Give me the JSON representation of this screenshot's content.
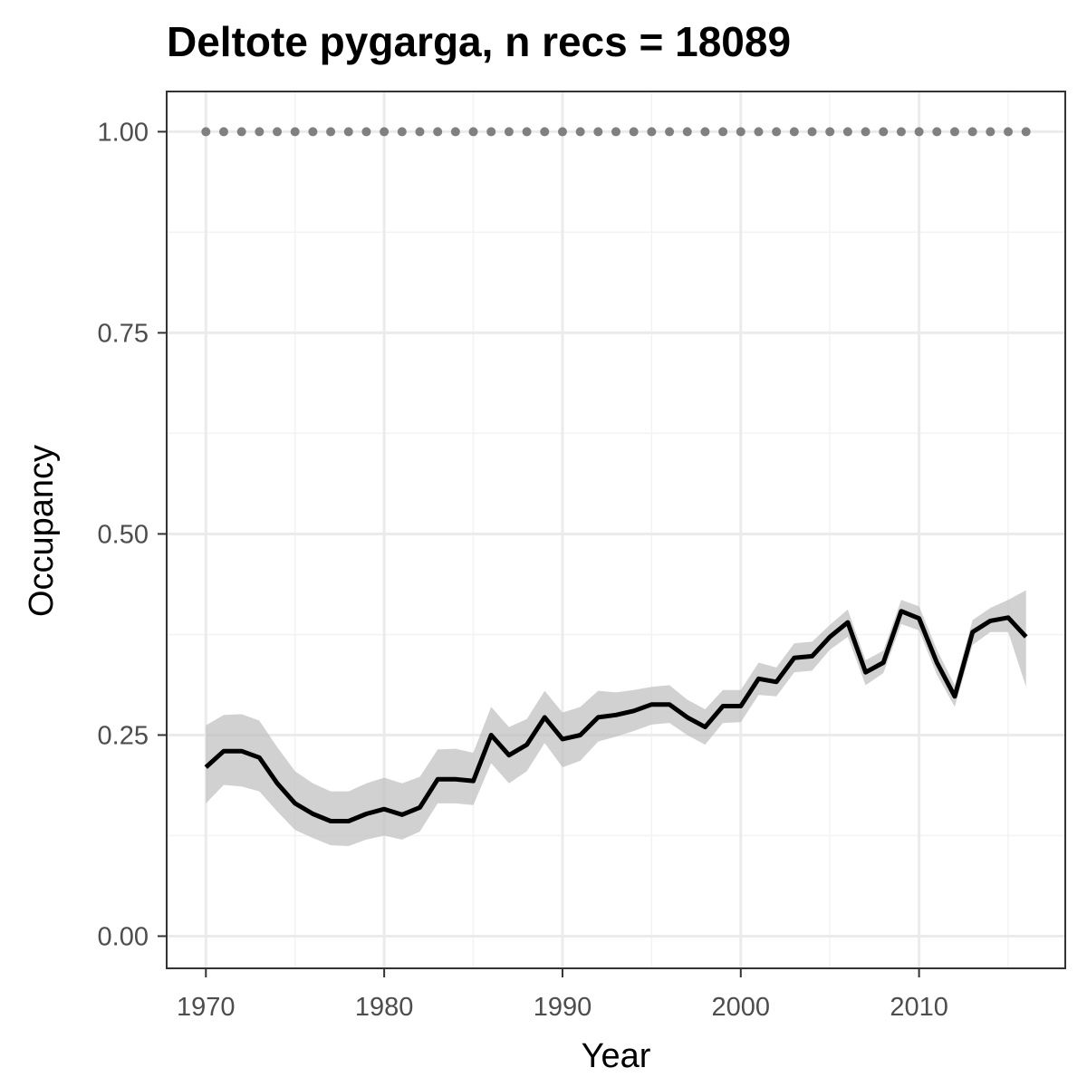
{
  "chart_data": {
    "type": "line",
    "title": "Deltote pygarga, n recs = 18089",
    "xlabel": "Year",
    "ylabel": "Occupancy",
    "xlim": [
      1967.8,
      2018.2
    ],
    "ylim": [
      -0.04,
      1.05
    ],
    "x_ticks": [
      1970,
      1980,
      1990,
      2000,
      2010
    ],
    "x_tick_labels": [
      "1970",
      "1980",
      "1990",
      "2000",
      "2010"
    ],
    "y_ticks": [
      0.0,
      0.25,
      0.5,
      0.75,
      1.0
    ],
    "y_tick_labels": [
      "0.00",
      "0.25",
      "0.50",
      "0.75",
      "1.00"
    ],
    "grid": true,
    "x": [
      1970,
      1971,
      1972,
      1973,
      1974,
      1975,
      1976,
      1977,
      1978,
      1979,
      1980,
      1981,
      1982,
      1983,
      1984,
      1985,
      1986,
      1987,
      1988,
      1989,
      1990,
      1991,
      1992,
      1993,
      1994,
      1995,
      1996,
      1997,
      1998,
      1999,
      2000,
      2001,
      2002,
      2003,
      2004,
      2005,
      2006,
      2007,
      2008,
      2009,
      2010,
      2011,
      2012,
      2013,
      2014,
      2015,
      2016
    ],
    "series": [
      {
        "values": [
          0.21,
          0.23,
          0.23,
          0.222,
          0.19,
          0.165,
          0.152,
          0.143,
          0.143,
          0.152,
          0.158,
          0.151,
          0.16,
          0.195,
          0.195,
          0.193,
          0.25,
          0.225,
          0.238,
          0.272,
          0.245,
          0.25,
          0.272,
          0.275,
          0.28,
          0.288,
          0.288,
          0.272,
          0.26,
          0.286,
          0.286,
          0.32,
          0.316,
          0.346,
          0.348,
          0.372,
          0.39,
          0.328,
          0.34,
          0.404,
          0.395,
          0.34,
          0.298,
          0.378,
          0.392,
          0.396,
          0.372
        ],
        "lower": [
          0.165,
          0.188,
          0.186,
          0.18,
          0.155,
          0.132,
          0.122,
          0.113,
          0.112,
          0.12,
          0.125,
          0.12,
          0.13,
          0.165,
          0.165,
          0.163,
          0.215,
          0.19,
          0.205,
          0.24,
          0.21,
          0.218,
          0.242,
          0.248,
          0.255,
          0.263,
          0.265,
          0.25,
          0.238,
          0.265,
          0.266,
          0.3,
          0.298,
          0.328,
          0.33,
          0.356,
          0.372,
          0.312,
          0.327,
          0.388,
          0.38,
          0.325,
          0.285,
          0.362,
          0.378,
          0.378,
          0.31
        ],
        "upper": [
          0.262,
          0.275,
          0.276,
          0.268,
          0.235,
          0.205,
          0.19,
          0.18,
          0.18,
          0.19,
          0.197,
          0.19,
          0.198,
          0.232,
          0.233,
          0.228,
          0.285,
          0.26,
          0.27,
          0.305,
          0.278,
          0.285,
          0.305,
          0.303,
          0.306,
          0.31,
          0.312,
          0.294,
          0.282,
          0.306,
          0.306,
          0.34,
          0.334,
          0.364,
          0.366,
          0.387,
          0.406,
          0.343,
          0.355,
          0.418,
          0.41,
          0.356,
          0.312,
          0.393,
          0.408,
          0.418,
          0.43
        ],
        "color": "#000000",
        "ribbon_color": "#bebebe"
      },
      {
        "values": [
          1,
          1,
          1,
          1,
          1,
          1,
          1,
          1,
          1,
          1,
          1,
          1,
          1,
          1,
          1,
          1,
          1,
          1,
          1,
          1,
          1,
          1,
          1,
          1,
          1,
          1,
          1,
          1,
          1,
          1,
          1,
          1,
          1,
          1,
          1,
          1,
          1,
          1,
          1,
          1,
          1,
          1,
          1,
          1,
          1,
          1,
          1
        ],
        "style": "dotted",
        "color": "#808080"
      }
    ]
  },
  "colors": {
    "panel_border": "#333333",
    "grid_major": "#ebebeb",
    "grid_minor": "#f3f3f3",
    "tick": "#333333"
  }
}
